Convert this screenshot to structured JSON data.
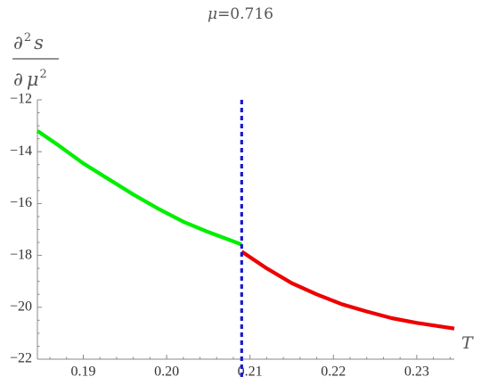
{
  "chart_data": {
    "type": "line",
    "title": "μ=0.716",
    "title_mu": "μ",
    "title_value": "=0.716",
    "ylabel_num_d": "∂",
    "ylabel_num_s": "s",
    "ylabel_den_d": "∂",
    "ylabel_den_mu": "μ",
    "ylabel_exp": "2",
    "xlabel": "T",
    "xlim": [
      0.1845,
      0.2345
    ],
    "ylim": [
      -22,
      -12
    ],
    "x_ticks": [
      0.19,
      0.2,
      0.21,
      0.22,
      0.23
    ],
    "x_tick_labels": [
      "0.19",
      "0.20",
      "0.21",
      "0.22",
      "0.23"
    ],
    "y_ticks": [
      -22,
      -20,
      -18,
      -16,
      -14,
      -12
    ],
    "y_tick_labels": [
      "−22",
      "−20",
      "−18",
      "−16",
      "−14",
      "−12"
    ],
    "grid": false,
    "series": [
      {
        "color": "#00ee00",
        "x": [
          0.1845,
          0.187,
          0.19,
          0.193,
          0.196,
          0.199,
          0.202,
          0.205,
          0.2075,
          0.209
        ],
        "y": [
          -13.2,
          -13.75,
          -14.45,
          -15.05,
          -15.65,
          -16.2,
          -16.7,
          -17.1,
          -17.4,
          -17.58
        ]
      },
      {
        "color": "#ee0000",
        "x": [
          0.209,
          0.212,
          0.215,
          0.218,
          0.221,
          0.224,
          0.227,
          0.23,
          0.2345
        ],
        "y": [
          -17.85,
          -18.5,
          -19.07,
          -19.5,
          -19.88,
          -20.16,
          -20.42,
          -20.6,
          -20.82
        ]
      }
    ],
    "vline": {
      "x": 0.209,
      "color": "#1a1acc",
      "style": "dashed"
    }
  }
}
